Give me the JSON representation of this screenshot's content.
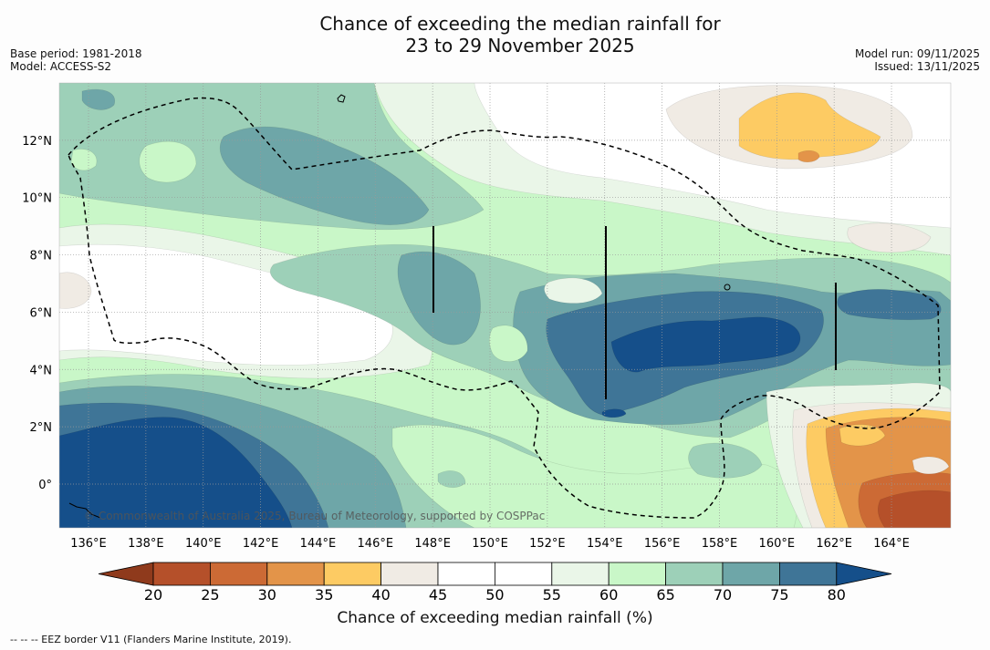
{
  "header": {
    "title_line1": "Chance of exceeding the median rainfall for",
    "title_line2": "23 to 29 November 2025",
    "base_period": "Base period: 1981-2018",
    "model": "Model: ACCESS-S2",
    "model_run": "Model run: 09/11/2025",
    "issued": "Issued: 13/11/2025"
  },
  "map": {
    "lon_ticks": [
      "136°E",
      "138°E",
      "140°E",
      "142°E",
      "144°E",
      "146°E",
      "148°E",
      "150°E",
      "152°E",
      "154°E",
      "156°E",
      "158°E",
      "160°E",
      "162°E",
      "164°E"
    ],
    "lat_ticks": [
      "12°N",
      "10°N",
      "8°N",
      "6°N",
      "4°N",
      "2°N",
      "0°"
    ],
    "attribution": "© Commonwealth of Australia 2025, Bureau of Meteorology, supported by COSPPac",
    "colors": {
      "below_20": "#8f3a1c",
      "c20_25": "#b5502a",
      "c25_30": "#cc6a35",
      "c30_35": "#e39449",
      "c35_40": "#fdcb63",
      "c40_45": "#f0ebe4",
      "c45_50": "#ffffff",
      "c50_55": "#ffffff",
      "c55_60": "#eaf6e8",
      "c60_65": "#c9f7c8",
      "c65_70": "#9dd0b8",
      "c70_75": "#6ea6a8",
      "c75_80": "#3f7597",
      "above_80": "#154f8a"
    }
  },
  "colorbar": {
    "ticks": [
      "20",
      "25",
      "30",
      "35",
      "40",
      "45",
      "50",
      "55",
      "60",
      "65",
      "70",
      "75",
      "80"
    ],
    "label": "Chance of exceeding median rainfall (%)"
  },
  "footer": {
    "legend_text": "--  --  -- EEZ border V11 (Flanders Marine Institute, 2019)."
  }
}
